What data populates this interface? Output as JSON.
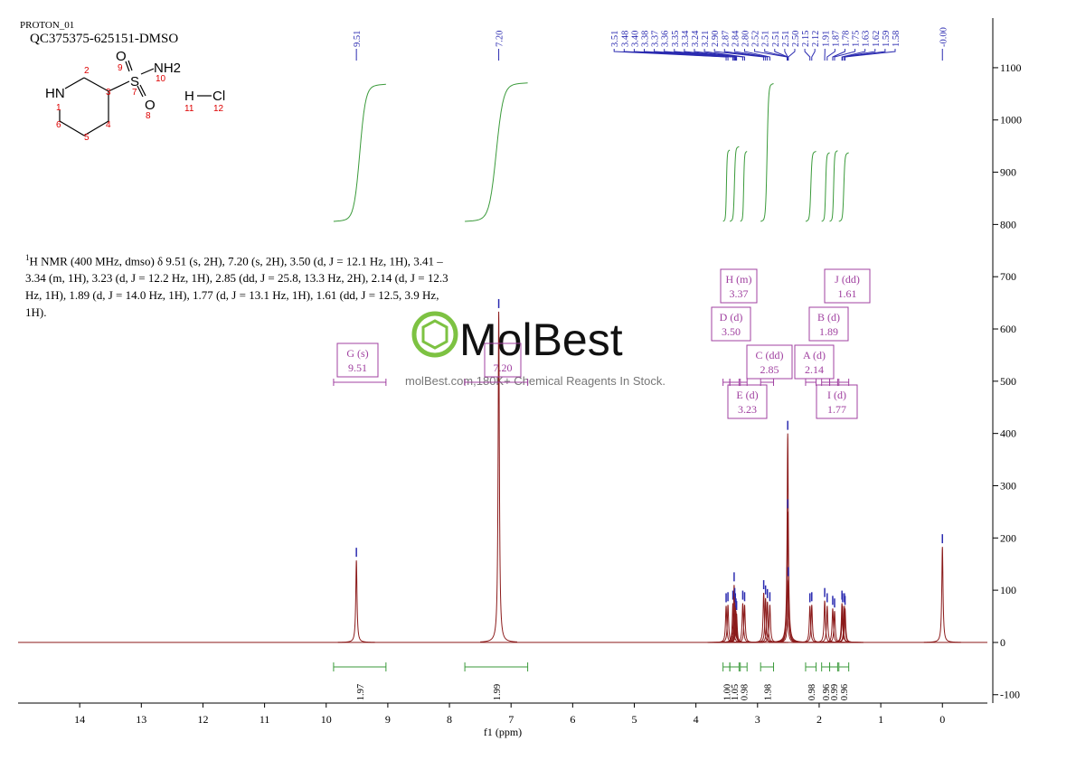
{
  "header": {
    "run": "PROTON_01",
    "sample": "QC375375-625151-DMSO"
  },
  "molecule": {
    "labels": [
      "HN",
      "1",
      "2",
      "3",
      "4",
      "5",
      "6",
      "O",
      "9",
      "S",
      "7",
      "NH2",
      "10",
      "O",
      "8",
      "H",
      "11",
      "Cl",
      "12"
    ]
  },
  "nmr_text": {
    "sup": "1",
    "body": "H NMR (400 MHz, dmso) δ 9.51 (s, 2H), 7.20 (s, 2H), 3.50 (d, J = 12.1 Hz, 1H), 3.41 – 3.34 (m, 1H), 3.23 (d, J = 12.2 Hz, 1H), 2.85 (dd, J = 25.8, 13.3 Hz, 2H), 2.14 (d, J = 12.3 Hz, 1H), 1.89 (d, J = 14.0 Hz, 1H), 1.77 (d, J = 13.1 Hz, 1H), 1.61 (dd, J = 12.5, 3.9 Hz, 1H)."
  },
  "watermark": {
    "brand": "MolBest",
    "tagline": "molBest.com,180K+ Chemical Reagents In Stock."
  },
  "chart_data": {
    "type": "nmr",
    "x_label": "f1 (ppm)",
    "color": "#8b1a1a",
    "peak_color": "#2b2bb0",
    "integral_color": "#3a9a3a",
    "multiplet_color": "#a040a0",
    "xlim": [
      15.0,
      -0.73
    ],
    "xticks": [
      14,
      13,
      12,
      11,
      10,
      9,
      8,
      7,
      6,
      5,
      4,
      3,
      2,
      1,
      0
    ],
    "ylim": [
      -116,
      1195
    ],
    "yticks": [
      -100,
      0,
      100,
      200,
      300,
      400,
      500,
      600,
      700,
      800,
      900,
      1000,
      1100
    ],
    "peaks": [
      {
        "ppm": 9.51,
        "label": "9.51",
        "height": 157
      },
      {
        "ppm": 7.2,
        "label": "7.20",
        "height": 633
      },
      {
        "ppm": 3.51,
        "label": "3.51",
        "height": 70
      },
      {
        "ppm": 3.48,
        "label": "3.48",
        "height": 72
      },
      {
        "ppm": 3.4,
        "label": "3.40",
        "height": 75
      },
      {
        "ppm": 3.38,
        "label": "3.38",
        "height": 110
      },
      {
        "ppm": 3.37,
        "label": "3.37",
        "height": 80
      },
      {
        "ppm": 3.36,
        "label": "3.36",
        "height": 70
      },
      {
        "ppm": 3.35,
        "label": "3.35",
        "height": 60
      },
      {
        "ppm": 3.34,
        "label": "3.34",
        "height": 55
      },
      {
        "ppm": 3.24,
        "label": "3.24",
        "height": 75
      },
      {
        "ppm": 3.21,
        "label": "3.21",
        "height": 72
      },
      {
        "ppm": 2.9,
        "label": "2.90",
        "height": 95
      },
      {
        "ppm": 2.87,
        "label": "2.87",
        "height": 85
      },
      {
        "ppm": 2.84,
        "label": "2.84",
        "height": 78
      },
      {
        "ppm": 2.8,
        "label": "2.80",
        "height": 72
      },
      {
        "ppm": 2.52,
        "label": "2.52",
        "height": 120
      },
      {
        "ppm": 2.51,
        "label": "2.51",
        "height": 250
      },
      {
        "ppm": 2.51,
        "label": "2.51",
        "height": 400
      },
      {
        "ppm": 2.51,
        "label": "2.51",
        "height": 250
      },
      {
        "ppm": 2.5,
        "label": "2.50",
        "height": 120
      },
      {
        "ppm": 2.15,
        "label": "2.15",
        "height": 70
      },
      {
        "ppm": 2.12,
        "label": "2.12",
        "height": 72
      },
      {
        "ppm": 1.91,
        "label": "1.91",
        "height": 80
      },
      {
        "ppm": 1.87,
        "label": "1.87",
        "height": 70
      },
      {
        "ppm": 1.78,
        "label": "1.78",
        "height": 65
      },
      {
        "ppm": 1.75,
        "label": "1.75",
        "height": 60
      },
      {
        "ppm": 1.63,
        "label": "1.63",
        "height": 75
      },
      {
        "ppm": 1.62,
        "label": "1.62",
        "height": 70
      },
      {
        "ppm": 1.59,
        "label": "1.59",
        "height": 70
      },
      {
        "ppm": 1.58,
        "label": "1.58",
        "height": 65
      },
      {
        "ppm": 0,
        "label": "-0.00",
        "height": 183
      }
    ],
    "integrals": {
      "ranges": [
        [
          9.88,
          9.03
        ],
        [
          7.75,
          6.73
        ],
        [
          3.56,
          3.45
        ],
        [
          3.45,
          3.3
        ],
        [
          3.28,
          3.17
        ],
        [
          2.95,
          2.74
        ],
        [
          2.22,
          2.05
        ],
        [
          1.96,
          1.83
        ],
        [
          1.83,
          1.7
        ],
        [
          1.68,
          1.52
        ]
      ],
      "values": [
        1.97,
        1.99,
        1,
        1.05,
        0.98,
        1.98,
        0.98,
        0.96,
        0.99,
        0.96
      ],
      "value_labels": [
        "1.97",
        "1.99",
        "1.00",
        "1.05",
        "0.98",
        "1.98",
        "0.98",
        "0.96",
        "0.99",
        "0.96"
      ]
    },
    "multiplets": [
      {
        "name": "G (s)",
        "shift": "9.51"
      },
      {
        "shift": "7.20"
      },
      {
        "name": "H (m)",
        "shift": "3.37"
      },
      {
        "name": "J (dd)",
        "shift": "1.61"
      },
      {
        "name": "D (d)",
        "shift": "3.50"
      },
      {
        "name": "B (d)",
        "shift": "1.89"
      },
      {
        "name": "C (dd)",
        "shift": "2.85"
      },
      {
        "name": "A (d)",
        "shift": "2.14"
      },
      {
        "name": "E (d)",
        "shift": "3.23"
      },
      {
        "name": "I (d)",
        "shift": "1.77"
      }
    ]
  }
}
